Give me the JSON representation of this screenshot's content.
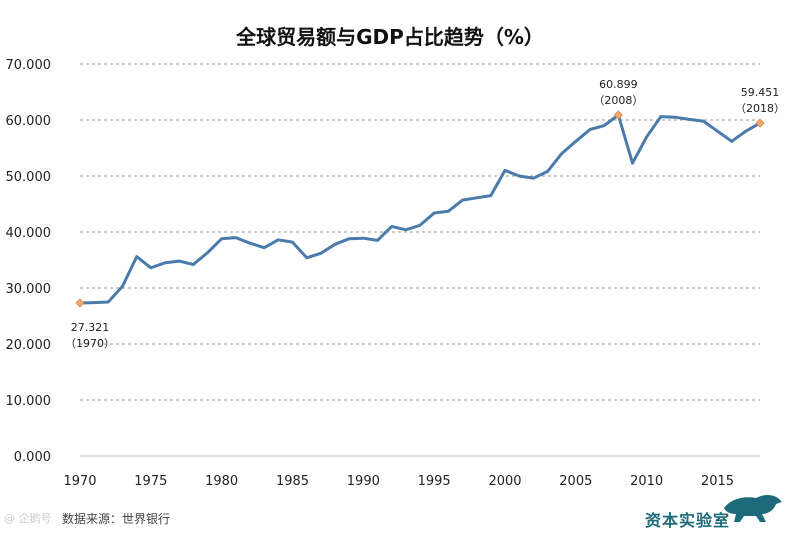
{
  "chart_data": {
    "type": "line",
    "title": "全球贸易额与GDP占比趋势（%）",
    "xlabel": "",
    "ylabel": "",
    "ylim": [
      0,
      70
    ],
    "yticks": [
      "0.000",
      "10.000",
      "20.000",
      "30.000",
      "40.000",
      "50.000",
      "60.000",
      "70.000"
    ],
    "xlim": [
      1970,
      2018
    ],
    "xticks": [
      "1970",
      "1975",
      "1980",
      "1985",
      "1990",
      "1995",
      "2000",
      "2005",
      "2010",
      "2015"
    ],
    "grid": true,
    "color": "#4a7bab",
    "marker_color": "#f0a86e",
    "series": [
      {
        "name": "全球贸易额与GDP占比",
        "x": [
          1970,
          1971,
          1972,
          1973,
          1974,
          1975,
          1976,
          1977,
          1978,
          1979,
          1980,
          1981,
          1982,
          1983,
          1984,
          1985,
          1986,
          1987,
          1988,
          1989,
          1990,
          1991,
          1992,
          1993,
          1994,
          1995,
          1996,
          1997,
          1998,
          1999,
          2000,
          2001,
          2002,
          2003,
          2004,
          2005,
          2006,
          2007,
          2008,
          2009,
          2010,
          2011,
          2012,
          2013,
          2014,
          2015,
          2016,
          2017,
          2018
        ],
        "values": [
          27.321,
          27.4,
          27.5,
          30.3,
          35.6,
          33.6,
          34.5,
          34.8,
          34.2,
          36.3,
          38.8,
          39.0,
          38.0,
          37.2,
          38.6,
          38.2,
          35.4,
          36.2,
          37.8,
          38.8,
          38.9,
          38.5,
          41.0,
          40.4,
          41.2,
          43.4,
          43.7,
          45.7,
          46.1,
          46.5,
          51.0,
          50.0,
          49.6,
          50.8,
          54.0,
          56.2,
          58.3,
          59.0,
          60.899,
          52.3,
          57.0,
          60.6,
          60.5,
          60.1,
          59.8,
          58.0,
          56.2,
          58.0,
          59.451
        ]
      }
    ],
    "annotations": [
      {
        "x": 1970,
        "y": 27.321,
        "value": "27.321",
        "year": "（1970）"
      },
      {
        "x": 2008,
        "y": 60.899,
        "value": "60.899",
        "year": "（2008）"
      },
      {
        "x": 2018,
        "y": 59.451,
        "value": "59.451",
        "year": "（2018）"
      }
    ]
  },
  "footer": {
    "source": "数据来源：世界银行",
    "brand": "资本实验室",
    "watermark": "@ 企鹅号"
  }
}
